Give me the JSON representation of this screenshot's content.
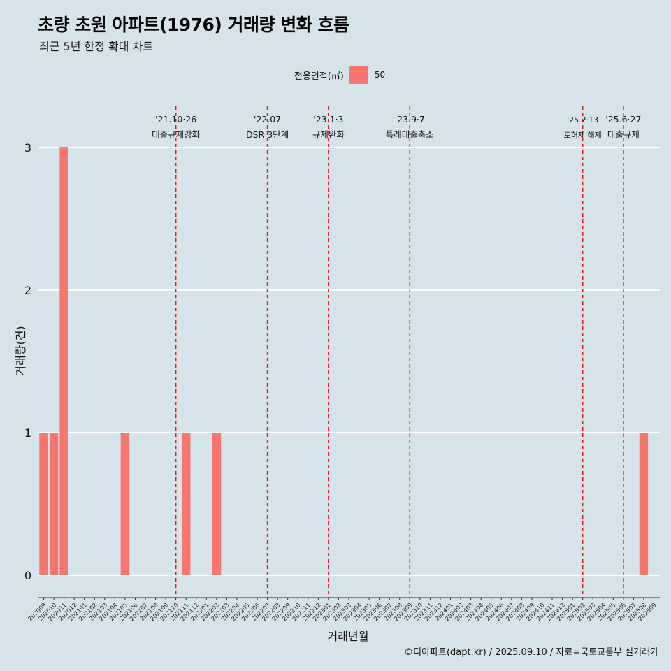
{
  "header": {
    "title": "초량 초원 아파트(1976) 거래량 변화 흐름",
    "subtitle": "최근 5년 한정 확대 차트"
  },
  "legend": {
    "title": "전용면적(㎡)",
    "label": "50",
    "color": "#f8766d"
  },
  "caption": "©디아파트(dapt.kr) / 2025.09.10 / 자료=국토교통부 실거래가",
  "chart_data": {
    "type": "bar",
    "title": "초량 초원 아파트(1976) 거래량 변화 흐름",
    "subtitle": "최근 5년 한정 확대 차트",
    "xlabel": "거래년월",
    "ylabel": "거래량(건)",
    "ylim": [
      0,
      3
    ],
    "yticks": [
      "0",
      "1",
      "2",
      "3"
    ],
    "grid": true,
    "legend_placement": "top",
    "colors": {
      "background": "#d5e4eb",
      "bar": "#f8766d",
      "event_line": "#ee1111",
      "grid": "#ffffff"
    },
    "categories": [
      "202009",
      "202010",
      "202011",
      "202012",
      "202101",
      "202102",
      "202103",
      "202104",
      "202105",
      "202106",
      "202107",
      "202108",
      "202109",
      "202110",
      "202111",
      "202112",
      "202201",
      "202202",
      "202203",
      "202204",
      "202205",
      "202206",
      "202207",
      "202208",
      "202209",
      "202210",
      "202211",
      "202212",
      "202301",
      "202302",
      "202303",
      "202304",
      "202305",
      "202306",
      "202307",
      "202308",
      "202309",
      "202310",
      "202311",
      "202312",
      "202401",
      "202402",
      "202403",
      "202404",
      "202405",
      "202406",
      "202407",
      "202408",
      "202409",
      "202410",
      "202411",
      "202412",
      "202501",
      "202502",
      "202503",
      "202504",
      "202505",
      "202506",
      "202507",
      "202508",
      "202509"
    ],
    "series": [
      {
        "name": "50",
        "values": [
          1,
          1,
          3,
          null,
          null,
          null,
          null,
          null,
          1,
          null,
          null,
          null,
          null,
          null,
          1,
          null,
          null,
          1,
          null,
          null,
          null,
          null,
          null,
          null,
          null,
          null,
          null,
          null,
          null,
          null,
          null,
          null,
          null,
          null,
          null,
          null,
          null,
          null,
          null,
          null,
          null,
          null,
          null,
          null,
          null,
          null,
          null,
          null,
          null,
          null,
          null,
          null,
          null,
          null,
          null,
          null,
          null,
          null,
          null,
          1,
          null
        ]
      }
    ],
    "annotations": [
      {
        "date": "202110",
        "line1": "'21.10·26",
        "line2": "대출규제강화",
        "small": false
      },
      {
        "date": "202207",
        "line1": "'22.07",
        "line2": "DSR 3단계",
        "small": false
      },
      {
        "date": "202301",
        "line1": "'23.1·3",
        "line2": "규제완화",
        "small": false
      },
      {
        "date": "202309",
        "line1": "'23.9·7",
        "line2": "특례대출축소",
        "small": false
      },
      {
        "date": "202502",
        "line1": "'25.2·13",
        "line2": "토허제 해제",
        "small": true
      },
      {
        "date": "202506",
        "line1": "'25.6·27",
        "line2": "대출규제",
        "small": false
      }
    ]
  }
}
